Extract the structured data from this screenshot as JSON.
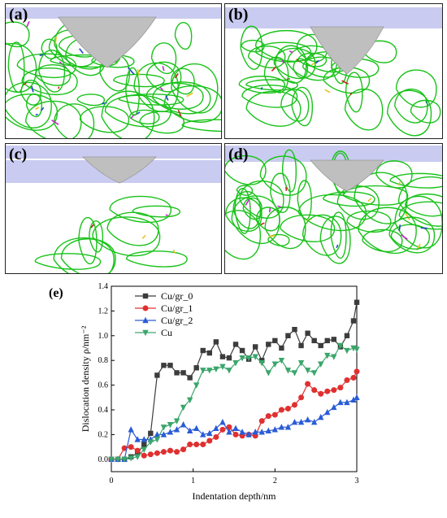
{
  "panels": [
    {
      "id": "a",
      "label": "(a)"
    },
    {
      "id": "b",
      "label": "(b)"
    },
    {
      "id": "c",
      "label": "(c)"
    },
    {
      "id": "d",
      "label": "(d)"
    }
  ],
  "colors": {
    "surface": "#c9cbf0",
    "indent": "#bfbfbf",
    "dislocation_main": "#19c219",
    "dislocation_red": "#cc2222",
    "dislocation_magenta": "#cc22cc",
    "dislocation_yellow": "#e6c21f",
    "dislocation_blue": "#2244cc"
  },
  "chart_label": "(e)",
  "chart_data": {
    "type": "line",
    "xlabel": "Indentation depth/nm",
    "ylabel": "Dislocation density ρ/nm⁻²",
    "xlim": [
      0,
      3
    ],
    "ylim": [
      -0.1,
      1.4
    ],
    "xticks": [
      "0",
      "1",
      "2",
      "3"
    ],
    "yticks": [
      "0.0",
      "0.2",
      "0.4",
      "0.6",
      "0.8",
      "1.0",
      "1.2",
      "1.4"
    ],
    "legend_position": "top-left",
    "series": [
      {
        "name": "Cu/gr_0",
        "color": "#3c3c3c",
        "marker": "square",
        "x": [
          0,
          0.08,
          0.16,
          0.24,
          0.32,
          0.4,
          0.48,
          0.56,
          0.64,
          0.72,
          0.8,
          0.88,
          0.96,
          1.04,
          1.12,
          1.2,
          1.28,
          1.36,
          1.44,
          1.52,
          1.6,
          1.68,
          1.76,
          1.84,
          1.92,
          2.0,
          2.08,
          2.16,
          2.24,
          2.32,
          2.4,
          2.48,
          2.56,
          2.64,
          2.72,
          2.8,
          2.88,
          2.96,
          3.0
        ],
        "y": [
          0,
          0,
          0,
          0.02,
          0.05,
          0.12,
          0.21,
          0.68,
          0.76,
          0.76,
          0.7,
          0.7,
          0.66,
          0.74,
          0.88,
          0.86,
          0.95,
          0.83,
          0.82,
          0.93,
          0.88,
          0.81,
          0.91,
          0.8,
          0.93,
          0.96,
          0.9,
          1.0,
          1.05,
          0.92,
          1.02,
          0.96,
          0.92,
          0.96,
          0.97,
          0.91,
          1.0,
          1.12,
          1.27
        ]
      },
      {
        "name": "Cu/gr_1",
        "color": "#e03030",
        "marker": "circle",
        "x": [
          0,
          0.08,
          0.16,
          0.24,
          0.32,
          0.4,
          0.48,
          0.56,
          0.64,
          0.72,
          0.8,
          0.88,
          0.96,
          1.04,
          1.12,
          1.2,
          1.28,
          1.36,
          1.44,
          1.52,
          1.6,
          1.68,
          1.76,
          1.84,
          1.92,
          2.0,
          2.08,
          2.16,
          2.24,
          2.32,
          2.4,
          2.48,
          2.56,
          2.64,
          2.72,
          2.8,
          2.88,
          2.96,
          3.0
        ],
        "y": [
          0,
          0,
          0.09,
          0.1,
          0.07,
          0.03,
          0.04,
          0.05,
          0.06,
          0.07,
          0.06,
          0.08,
          0.12,
          0.12,
          0.12,
          0.15,
          0.18,
          0.24,
          0.26,
          0.2,
          0.19,
          0.2,
          0.19,
          0.31,
          0.35,
          0.36,
          0.4,
          0.41,
          0.44,
          0.5,
          0.61,
          0.56,
          0.53,
          0.55,
          0.56,
          0.58,
          0.64,
          0.66,
          0.71
        ]
      },
      {
        "name": "Cu/gr_2",
        "color": "#2a5bd7",
        "marker": "triangle-up",
        "x": [
          0,
          0.08,
          0.16,
          0.24,
          0.32,
          0.4,
          0.48,
          0.56,
          0.64,
          0.72,
          0.8,
          0.88,
          0.96,
          1.04,
          1.12,
          1.2,
          1.28,
          1.36,
          1.44,
          1.52,
          1.6,
          1.68,
          1.76,
          1.84,
          1.92,
          2.0,
          2.08,
          2.16,
          2.24,
          2.32,
          2.4,
          2.48,
          2.56,
          2.64,
          2.72,
          2.8,
          2.88,
          2.96,
          3.0
        ],
        "y": [
          0,
          0,
          0,
          0.24,
          0.16,
          0.16,
          0.16,
          0.2,
          0.2,
          0.22,
          0.24,
          0.28,
          0.23,
          0.25,
          0.2,
          0.21,
          0.25,
          0.3,
          0.22,
          0.25,
          0.22,
          0.2,
          0.22,
          0.22,
          0.23,
          0.24,
          0.26,
          0.26,
          0.3,
          0.3,
          0.32,
          0.3,
          0.34,
          0.38,
          0.42,
          0.46,
          0.46,
          0.48,
          0.5
        ]
      },
      {
        "name": "Cu",
        "color": "#3aa66b",
        "marker": "triangle-down",
        "x": [
          0,
          0.08,
          0.16,
          0.24,
          0.32,
          0.4,
          0.48,
          0.56,
          0.64,
          0.72,
          0.8,
          0.88,
          0.96,
          1.04,
          1.12,
          1.2,
          1.28,
          1.36,
          1.44,
          1.52,
          1.6,
          1.68,
          1.76,
          1.84,
          1.92,
          2.0,
          2.08,
          2.16,
          2.24,
          2.32,
          2.4,
          2.48,
          2.56,
          2.64,
          2.72,
          2.8,
          2.88,
          2.96,
          3.0
        ],
        "y": [
          0,
          0,
          0,
          0.01,
          0.02,
          0.08,
          0.14,
          0.16,
          0.26,
          0.28,
          0.31,
          0.42,
          0.48,
          0.6,
          0.72,
          0.72,
          0.73,
          0.75,
          0.72,
          0.78,
          0.82,
          0.82,
          0.83,
          0.78,
          0.7,
          0.77,
          0.8,
          0.72,
          0.7,
          0.78,
          0.72,
          0.7,
          0.77,
          0.84,
          0.83,
          0.92,
          0.88,
          0.9,
          0.89
        ]
      }
    ]
  }
}
